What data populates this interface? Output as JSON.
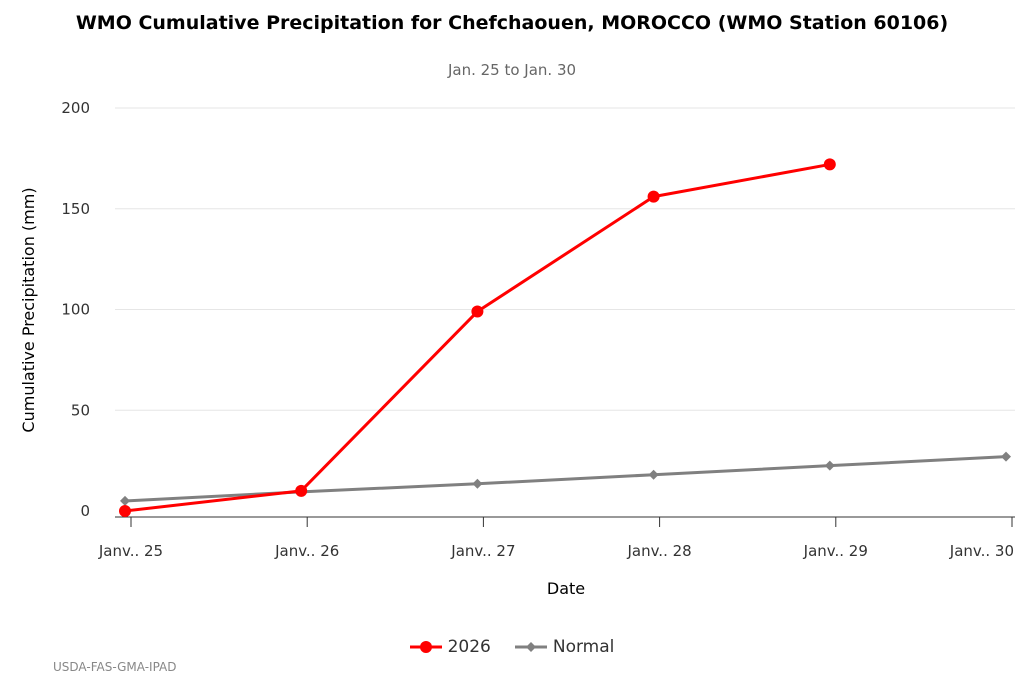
{
  "chart_data": {
    "type": "line",
    "title": "WMO Cumulative Precipitation for Chefchaouen, MOROCCO (WMO Station 60106)",
    "subtitle": "Jan. 25 to Jan. 30",
    "xlabel": "Date",
    "ylabel": "Cumulative Precipitation (mm)",
    "categories": [
      "Janv.. 25",
      "Janv.. 26",
      "Janv.. 27",
      "Janv.. 28",
      "Janv.. 29",
      "Janv.. 30"
    ],
    "ylim": [
      0,
      200
    ],
    "yticks": [
      0,
      50,
      100,
      150,
      200
    ],
    "grid": true,
    "legend_position": "bottom-center",
    "series": [
      {
        "name": "2026",
        "color": "#ff0000",
        "marker": "circle",
        "values": [
          0,
          10,
          99,
          156,
          172,
          null
        ]
      },
      {
        "name": "Normal",
        "color": "#808080",
        "marker": "diamond",
        "values": [
          5,
          9.5,
          13.5,
          18,
          22.5,
          27
        ]
      }
    ]
  },
  "credit": "USDA-FAS-GMA-IPAD"
}
